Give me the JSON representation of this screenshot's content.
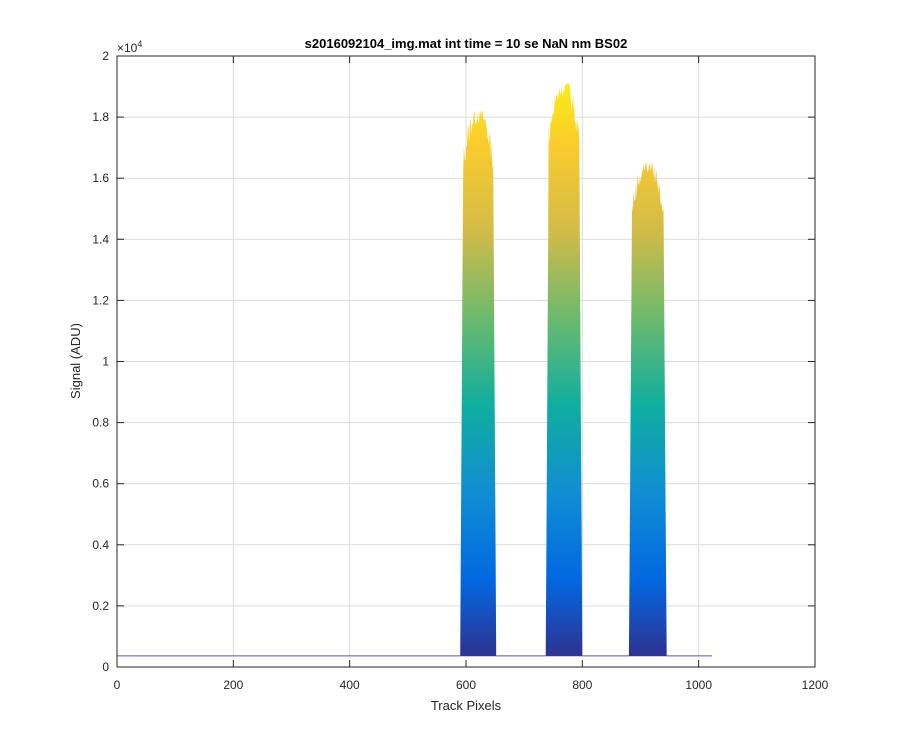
{
  "chart_data": {
    "type": "area",
    "title": "s2016092104_img.mat int time = 10 se  NaN nm BS02",
    "xlabel": "Track Pixels",
    "ylabel": "Signal (ADU)",
    "xlim": [
      0,
      1200
    ],
    "ylim": [
      0,
      20000
    ],
    "x_ticks": [
      0,
      200,
      400,
      600,
      800,
      1000,
      1200
    ],
    "x_tick_labels": [
      "0",
      "200",
      "400",
      "600",
      "800",
      "1000",
      "1200"
    ],
    "y_ticks": [
      0,
      2000,
      4000,
      6000,
      8000,
      10000,
      12000,
      14000,
      16000,
      18000,
      20000
    ],
    "y_tick_labels": [
      "0",
      "0.2",
      "0.4",
      "0.6",
      "0.8",
      "1",
      "1.2",
      "1.4",
      "1.6",
      "1.8",
      "2"
    ],
    "y_exponent_base": "×10",
    "y_exponent_power": "4",
    "grid": true,
    "baseline": 350,
    "x_max_data": 1023,
    "peaks": [
      {
        "start": 590,
        "end": 652,
        "peak": 18200
      },
      {
        "start": 737,
        "end": 800,
        "peak": 19100
      },
      {
        "start": 880,
        "end": 945,
        "peak": 16500
      }
    ],
    "colormap": [
      "#352a87",
      "#0268e1",
      "#108ed2",
      "#0fae9f",
      "#6cba6e",
      "#d3bb48",
      "#fbcc2c",
      "#f9fb0e"
    ]
  }
}
